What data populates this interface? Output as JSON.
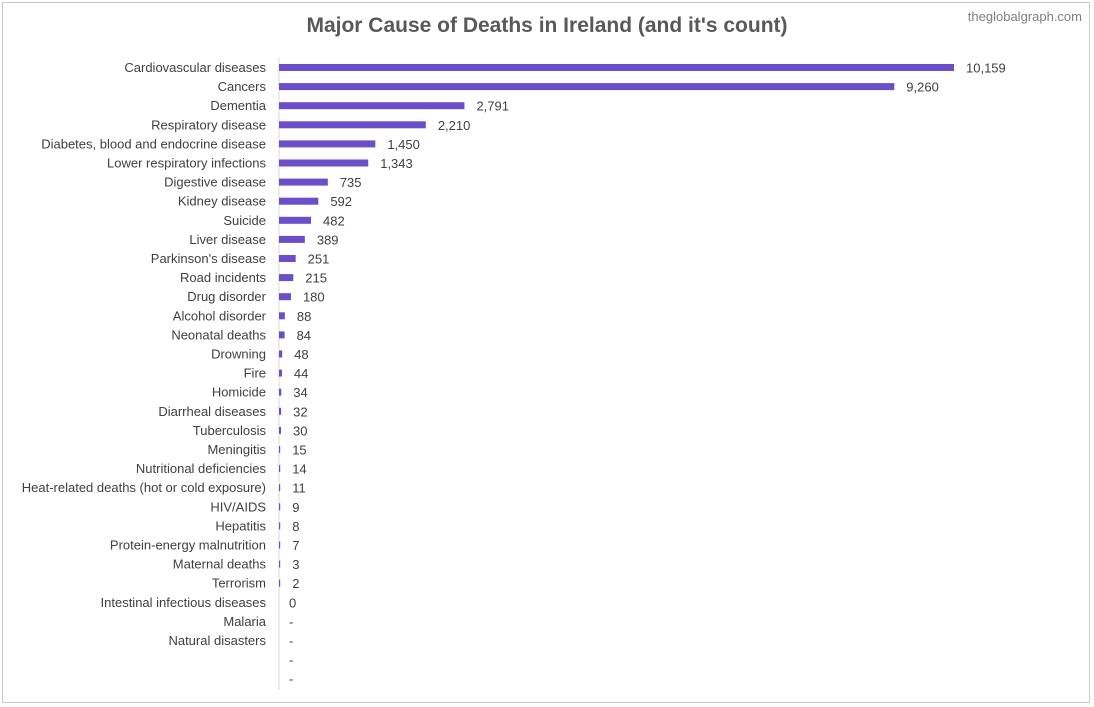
{
  "title": "Major Cause of Deaths in Ireland (and it's count)",
  "watermark": "theglobalgraph.com",
  "colors": {
    "bar": "#6a4fc9",
    "text": "#404040",
    "axis": "#d9d9d9"
  },
  "chart_data": {
    "type": "bar",
    "orientation": "horizontal",
    "title": "Major Cause of Deaths in Ireland (and it's count)",
    "grid": false,
    "legend": "none",
    "xlim": [
      0,
      10159
    ],
    "categories": [
      "Cardiovascular diseases",
      "Cancers",
      "Dementia",
      "Respiratory disease",
      "Diabetes, blood and endocrine disease",
      "Lower respiratory infections",
      "Digestive disease",
      "Kidney disease",
      "Suicide",
      "Liver disease",
      "Parkinson's disease",
      "Road incidents",
      "Drug disorder",
      "Alcohol disorder",
      "Neonatal deaths",
      "Drowning",
      "Fire",
      "Homicide",
      "Diarrheal diseases",
      "Tuberculosis",
      "Meningitis",
      "Nutritional deficiencies",
      "Heat-related deaths (hot or cold exposure)",
      "HIV/AIDS",
      "Hepatitis",
      "Protein-energy malnutrition",
      "Maternal deaths",
      "Terrorism",
      "Intestinal infectious diseases",
      "Malaria",
      "Natural disasters",
      "",
      ""
    ],
    "values": [
      10159,
      9260,
      2791,
      2210,
      1450,
      1343,
      735,
      592,
      482,
      389,
      251,
      215,
      180,
      88,
      84,
      48,
      44,
      34,
      32,
      30,
      15,
      14,
      11,
      9,
      8,
      7,
      3,
      2,
      0,
      null,
      null,
      null,
      null
    ],
    "data_labels": [
      "10,159",
      "9,260",
      "2,791",
      "2,210",
      "1,450",
      "1,343",
      "735",
      "592",
      "482",
      "389",
      "251",
      "215",
      "180",
      "88",
      "84",
      "48",
      "44",
      "34",
      "32",
      "30",
      "15",
      "14",
      "11",
      "9",
      "8",
      "7",
      "3",
      "2",
      "0",
      "-",
      "-",
      "-",
      "-"
    ]
  }
}
